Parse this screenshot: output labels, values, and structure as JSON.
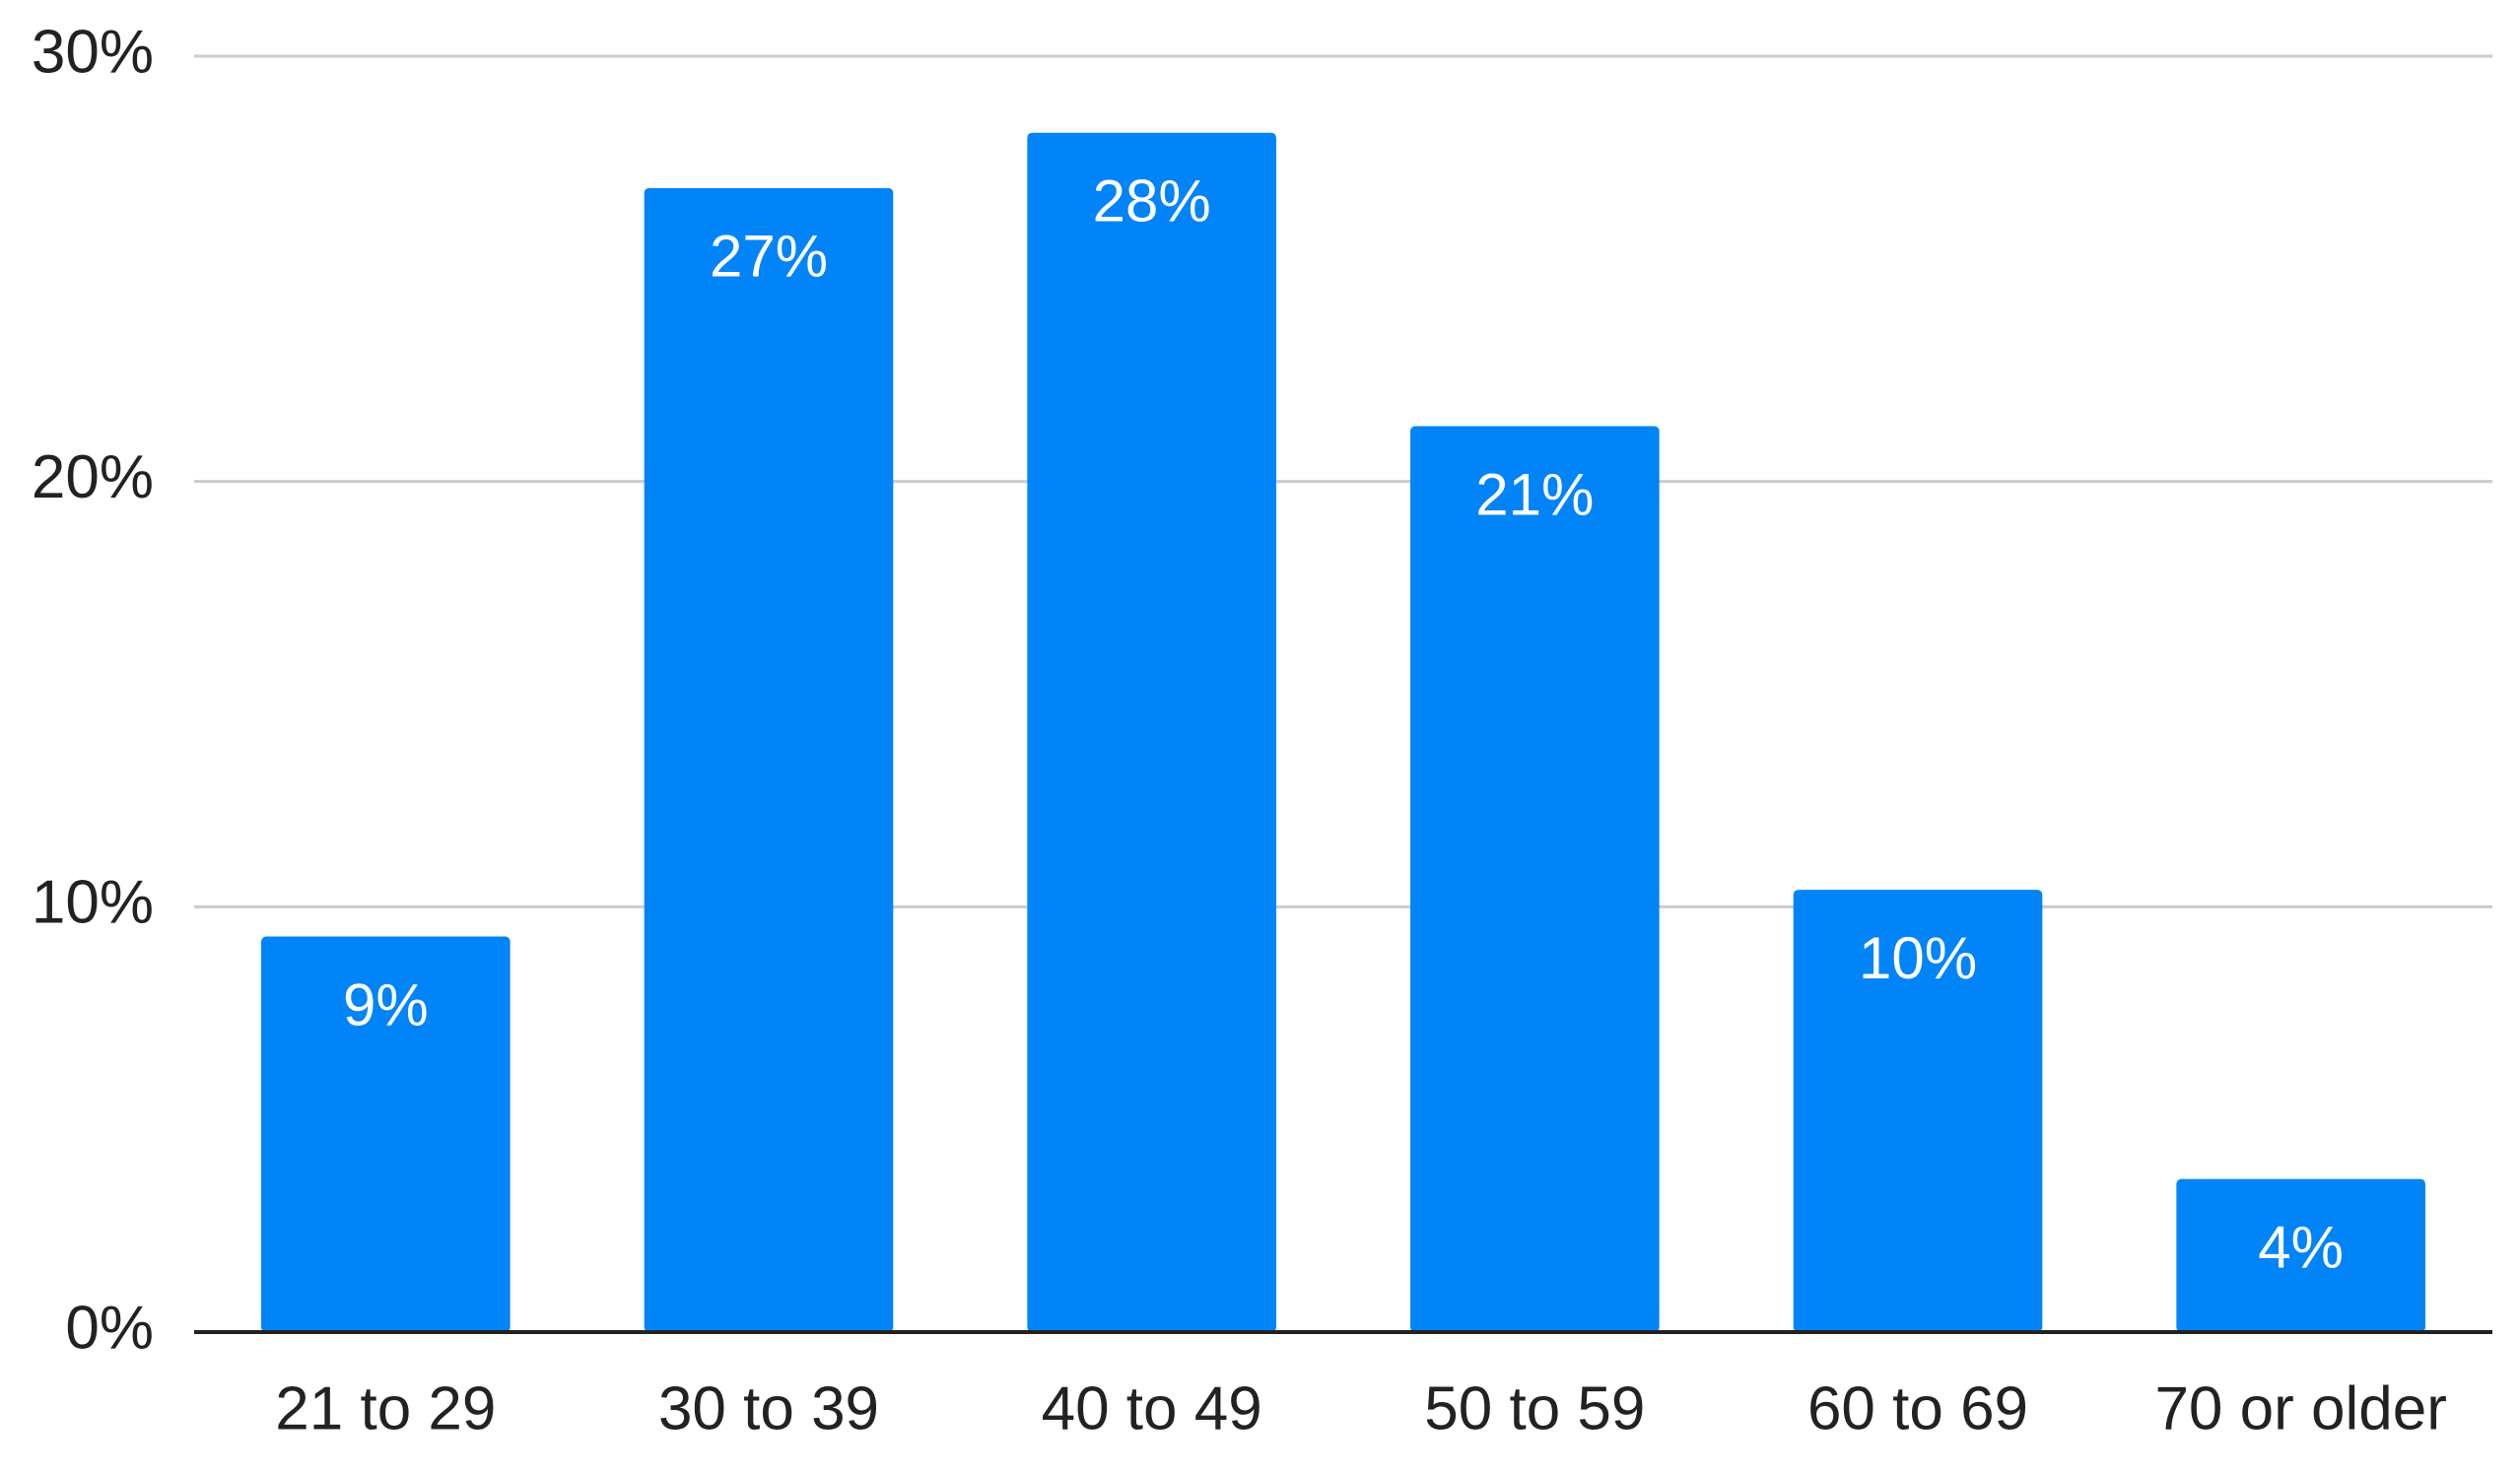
{
  "chart_data": {
    "type": "bar",
    "categories": [
      "21 to 29",
      "30 to 39",
      "40 to 49",
      "50 to 59",
      "60 to 69",
      "70 or older"
    ],
    "values": [
      9.3,
      26.9,
      28.2,
      21.3,
      10.4,
      3.6
    ],
    "value_labels": [
      "9%",
      "27%",
      "28%",
      "21%",
      "10%",
      "4%"
    ],
    "color": "#0084f8",
    "ylim": [
      0,
      30
    ],
    "yticks": [
      {
        "value": 0,
        "label": "0%"
      },
      {
        "value": 10,
        "label": "10%"
      },
      {
        "value": 20,
        "label": "20%"
      },
      {
        "value": 30,
        "label": "30%"
      }
    ],
    "grid": true
  }
}
